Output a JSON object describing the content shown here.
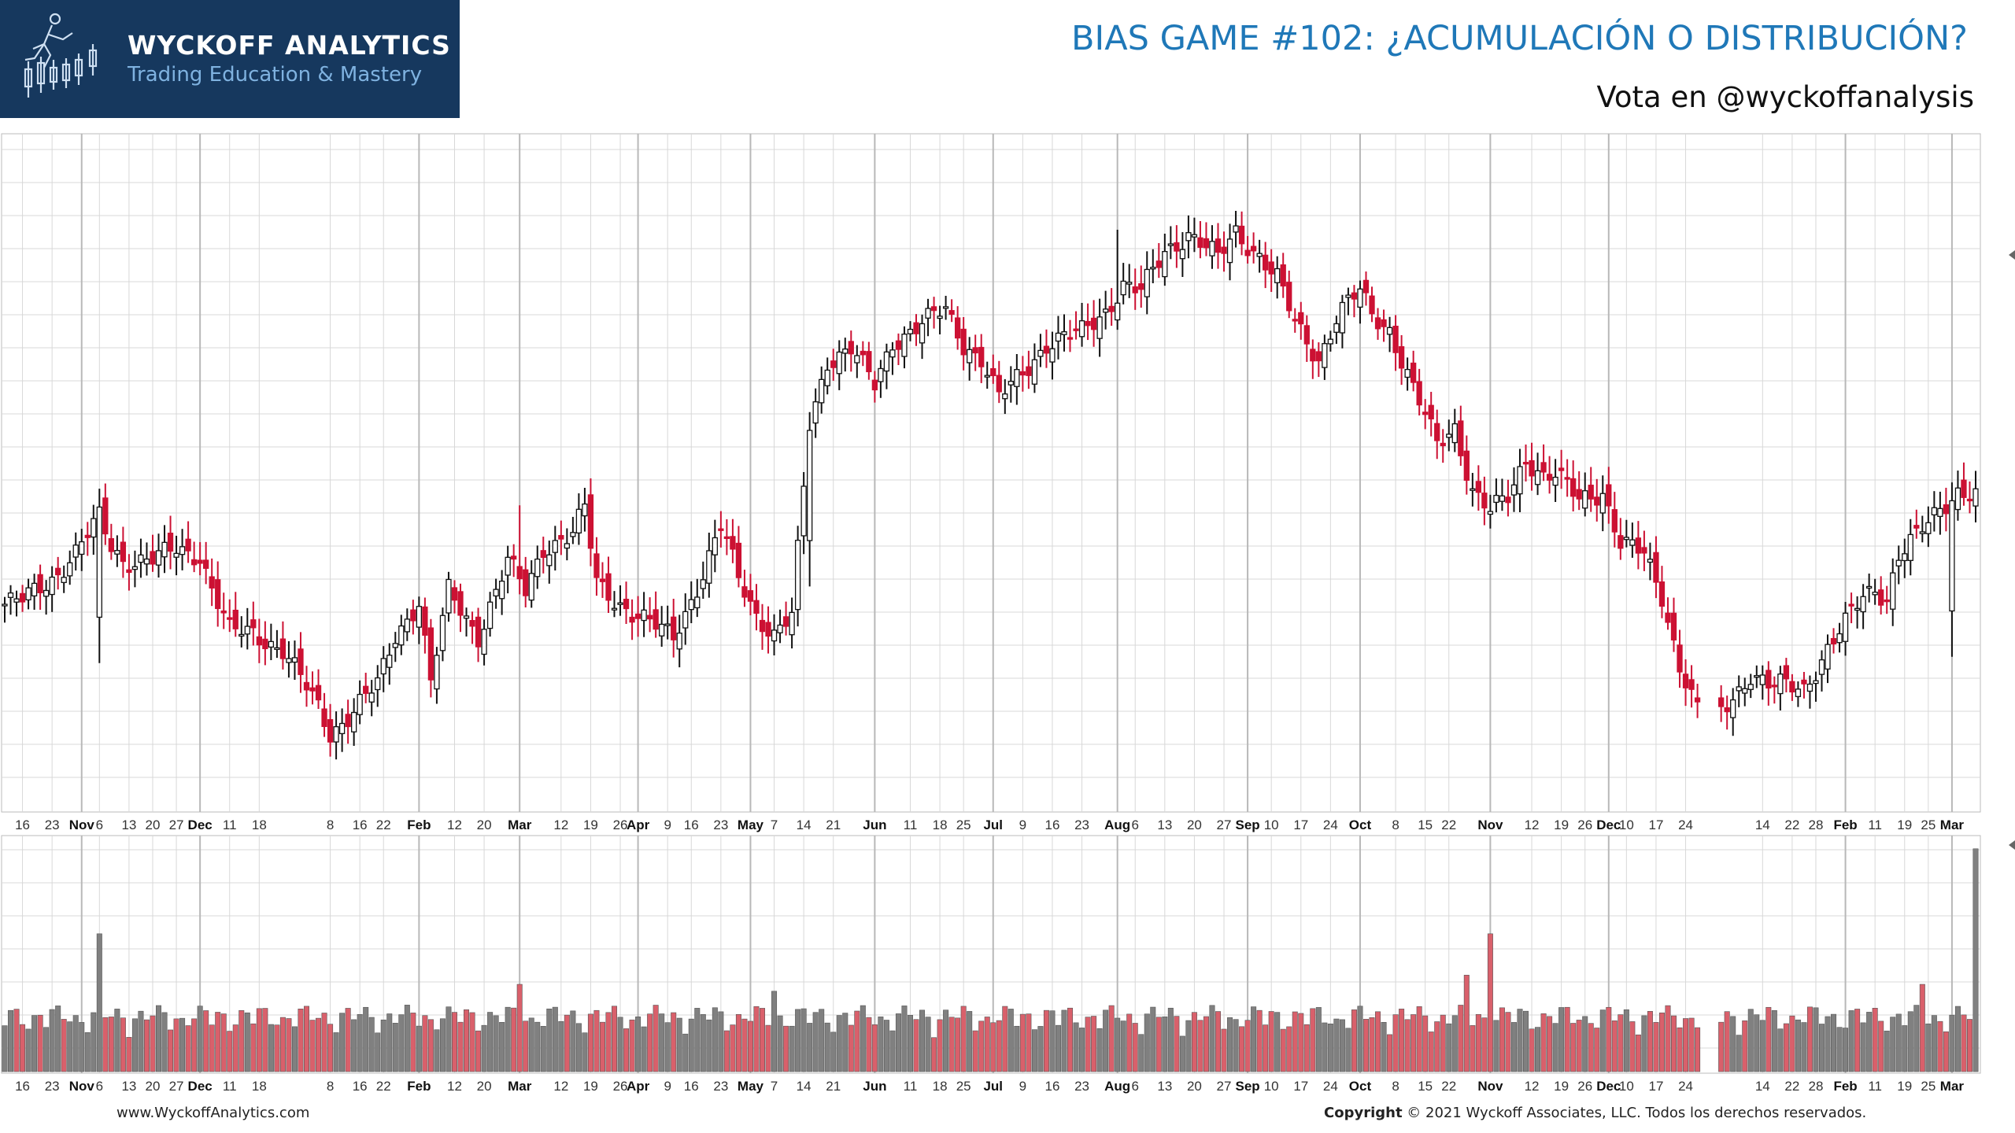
{
  "logo": {
    "name": "WYCKOFF ANALYTICS",
    "tagline": "Trading Education & Mastery",
    "bg": "#16385e"
  },
  "header": {
    "title": "BIAS GAME #102: ¿ACUMULACIÓN O DISTRIBUCIÓN?",
    "subtitle": "Vota en @wyckoffanalysis",
    "title_color": "#1f78b8"
  },
  "footer": {
    "url": "www.WyckoffAnalytics.com",
    "copyright_label": "Copyright",
    "copyright_text": "© 2021 Wyckoff Associates, LLC. Todos los derechos reservados."
  },
  "chart_data": {
    "type": "candlestick",
    "xlabel": "",
    "ylabel": "",
    "grid": true,
    "colors": {
      "up": "#ffffff",
      "down": "#cc1133",
      "outline": "#111111",
      "vol_up": "#808080",
      "vol_down": "#d9606b",
      "grid": "#d8d8d8"
    },
    "x_ticks": [
      {
        "label": "16",
        "i": 3
      },
      {
        "label": "23",
        "i": 8
      },
      {
        "label": "Nov",
        "i": 13,
        "major": true
      },
      {
        "label": "6",
        "i": 16
      },
      {
        "label": "13",
        "i": 21
      },
      {
        "label": "20",
        "i": 25
      },
      {
        "label": "27",
        "i": 29
      },
      {
        "label": "Dec",
        "i": 33,
        "major": true
      },
      {
        "label": "11",
        "i": 38
      },
      {
        "label": "18",
        "i": 43
      },
      {
        "label": "8",
        "i": 55
      },
      {
        "label": "16",
        "i": 60
      },
      {
        "label": "22",
        "i": 64
      },
      {
        "label": "Feb",
        "i": 70,
        "major": true
      },
      {
        "label": "12",
        "i": 76
      },
      {
        "label": "20",
        "i": 81
      },
      {
        "label": "Mar",
        "i": 87,
        "major": true
      },
      {
        "label": "12",
        "i": 94
      },
      {
        "label": "19",
        "i": 99
      },
      {
        "label": "26",
        "i": 104
      },
      {
        "label": "Apr",
        "i": 107,
        "major": true
      },
      {
        "label": "9",
        "i": 112
      },
      {
        "label": "16",
        "i": 116
      },
      {
        "label": "23",
        "i": 121
      },
      {
        "label": "May",
        "i": 126,
        "major": true
      },
      {
        "label": "7",
        "i": 130
      },
      {
        "label": "14",
        "i": 135
      },
      {
        "label": "21",
        "i": 140
      },
      {
        "label": "Jun",
        "i": 147,
        "major": true
      },
      {
        "label": "11",
        "i": 153
      },
      {
        "label": "18",
        "i": 158
      },
      {
        "label": "25",
        "i": 162
      },
      {
        "label": "Jul",
        "i": 167,
        "major": true
      },
      {
        "label": "9",
        "i": 172
      },
      {
        "label": "16",
        "i": 177
      },
      {
        "label": "23",
        "i": 182
      },
      {
        "label": "Aug",
        "i": 188,
        "major": true
      },
      {
        "label": "6",
        "i": 191
      },
      {
        "label": "13",
        "i": 196
      },
      {
        "label": "20",
        "i": 201
      },
      {
        "label": "27",
        "i": 206
      },
      {
        "label": "Sep",
        "i": 210,
        "major": true
      },
      {
        "label": "10",
        "i": 214
      },
      {
        "label": "17",
        "i": 219
      },
      {
        "label": "24",
        "i": 224
      },
      {
        "label": "Oct",
        "i": 229,
        "major": true
      },
      {
        "label": "8",
        "i": 235
      },
      {
        "label": "15",
        "i": 240
      },
      {
        "label": "22",
        "i": 244
      },
      {
        "label": "Nov",
        "i": 251,
        "major": true
      },
      {
        "label": "12",
        "i": 258
      },
      {
        "label": "19",
        "i": 263
      },
      {
        "label": "26",
        "i": 267
      },
      {
        "label": "Dec",
        "i": 271,
        "major": true
      },
      {
        "label": "10",
        "i": 274
      },
      {
        "label": "17",
        "i": 279
      },
      {
        "label": "24",
        "i": 284
      },
      {
        "label": "14",
        "i": 297
      },
      {
        "label": "22",
        "i": 302
      },
      {
        "label": "28",
        "i": 306
      },
      {
        "label": "Feb",
        "i": 311,
        "major": true
      },
      {
        "label": "11",
        "i": 316
      },
      {
        "label": "19",
        "i": 321
      },
      {
        "label": "25",
        "i": 325
      },
      {
        "label": "Mar",
        "i": 329,
        "major": true
      }
    ],
    "key_points": [
      [
        0,
        578
      ],
      [
        3,
        580
      ],
      [
        8,
        592
      ],
      [
        12,
        606
      ],
      [
        16,
        625
      ],
      [
        18,
        610
      ],
      [
        20,
        602
      ],
      [
        25,
        602
      ],
      [
        29,
        608
      ],
      [
        33,
        605
      ],
      [
        35,
        587
      ],
      [
        38,
        563
      ],
      [
        42,
        563
      ],
      [
        47,
        553
      ],
      [
        53,
        522
      ],
      [
        55,
        508
      ],
      [
        58,
        517
      ],
      [
        63,
        534
      ],
      [
        66,
        561
      ],
      [
        70,
        580
      ],
      [
        72,
        535
      ],
      [
        75,
        585
      ],
      [
        80,
        561
      ],
      [
        85,
        601
      ],
      [
        88,
        585
      ],
      [
        91,
        609
      ],
      [
        96,
        616
      ],
      [
        98,
        630
      ],
      [
        100,
        590
      ],
      [
        106,
        573
      ],
      [
        109,
        567
      ],
      [
        113,
        561
      ],
      [
        118,
        594
      ],
      [
        121,
        620
      ],
      [
        124,
        593
      ],
      [
        127,
        573
      ],
      [
        130,
        561
      ],
      [
        133,
        571
      ],
      [
        136,
        676
      ],
      [
        139,
        711
      ],
      [
        143,
        717
      ],
      [
        147,
        697
      ],
      [
        150,
        721
      ],
      [
        155,
        731
      ],
      [
        159,
        738
      ],
      [
        162,
        720
      ],
      [
        165,
        712
      ],
      [
        168,
        690
      ],
      [
        172,
        704
      ],
      [
        176,
        720
      ],
      [
        182,
        726
      ],
      [
        186,
        738
      ],
      [
        189,
        752
      ],
      [
        192,
        748
      ],
      [
        196,
        770
      ],
      [
        200,
        780
      ],
      [
        202,
        775
      ],
      [
        205,
        766
      ],
      [
        208,
        781
      ],
      [
        212,
        768
      ],
      [
        215,
        755
      ],
      [
        218,
        731
      ],
      [
        222,
        712
      ],
      [
        225,
        734
      ],
      [
        227,
        742
      ],
      [
        229,
        748
      ],
      [
        231,
        736
      ],
      [
        234,
        728
      ],
      [
        238,
        695
      ],
      [
        242,
        665
      ],
      [
        245,
        675
      ],
      [
        248,
        640
      ],
      [
        251,
        628
      ],
      [
        254,
        636
      ],
      [
        257,
        658
      ],
      [
        260,
        648
      ],
      [
        262,
        648
      ],
      [
        266,
        635
      ],
      [
        270,
        640
      ],
      [
        273,
        611
      ],
      [
        277,
        605
      ],
      [
        280,
        583
      ],
      [
        283,
        545
      ],
      [
        286,
        520
      ],
      [
        289,
        517
      ],
      [
        292,
        528
      ],
      [
        295,
        540
      ],
      [
        298,
        533
      ],
      [
        301,
        534
      ],
      [
        304,
        533
      ],
      [
        308,
        553
      ],
      [
        311,
        567
      ],
      [
        314,
        583
      ],
      [
        316,
        587
      ],
      [
        318,
        582
      ],
      [
        320,
        604
      ],
      [
        323,
        614
      ],
      [
        327,
        631
      ],
      [
        330,
        640
      ],
      [
        333,
        637
      ]
    ],
    "breakaway_spikes": [
      {
        "i": 16,
        "type": "gap-up"
      },
      {
        "i": 87,
        "type": "spike"
      },
      {
        "i": 136,
        "type": "gap-up"
      },
      {
        "i": 188,
        "type": "spike"
      },
      {
        "i": 329,
        "type": "gap-up"
      }
    ],
    "volume_spikes": [
      {
        "i": 16,
        "v": 60
      },
      {
        "i": 87,
        "v": 38
      },
      {
        "i": 130,
        "v": 35
      },
      {
        "i": 247,
        "v": 42
      },
      {
        "i": 251,
        "v": 60
      },
      {
        "i": 324,
        "v": 38
      },
      {
        "i": 333,
        "v": 97
      }
    ]
  }
}
